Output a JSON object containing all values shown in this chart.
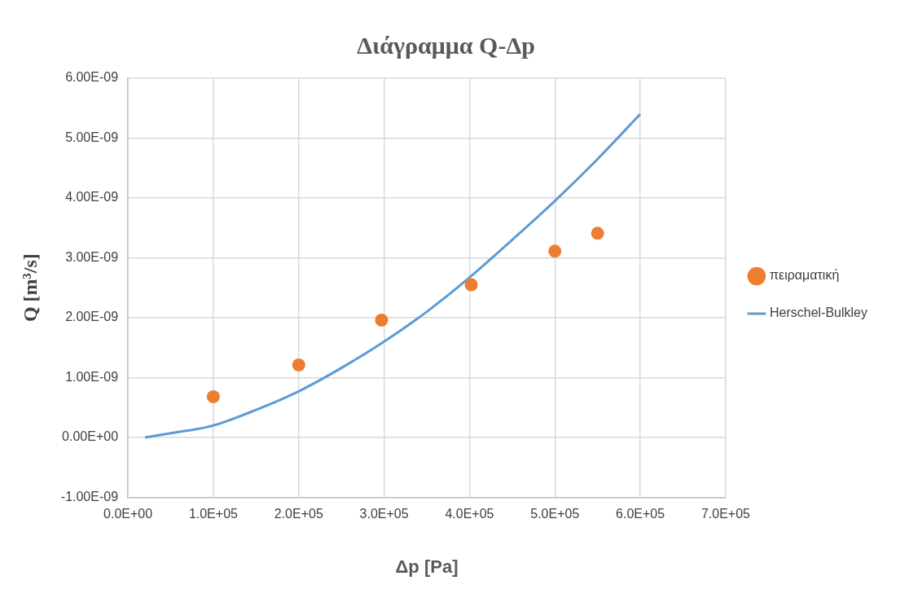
{
  "chart_data": {
    "type": "scatter",
    "title": "Διάγραμμα Q-Δp",
    "xlabel": "Δp [Pa]",
    "ylabel": "Q [m³/s]",
    "xlim": [
      0,
      700000
    ],
    "ylim": [
      -1e-09,
      6e-09
    ],
    "xticks": [
      {
        "value": 0,
        "label": "0.0E+00"
      },
      {
        "value": 100000,
        "label": "1.0E+05"
      },
      {
        "value": 200000,
        "label": "2.0E+05"
      },
      {
        "value": 300000,
        "label": "3.0E+05"
      },
      {
        "value": 400000,
        "label": "4.0E+05"
      },
      {
        "value": 500000,
        "label": "5.0E+05"
      },
      {
        "value": 600000,
        "label": "6.0E+05"
      },
      {
        "value": 700000,
        "label": "7.0E+05"
      }
    ],
    "yticks": [
      {
        "value": -1e-09,
        "label": "-1.00E-09"
      },
      {
        "value": 0,
        "label": "0.00E+00"
      },
      {
        "value": 1e-09,
        "label": "1.00E-09"
      },
      {
        "value": 2e-09,
        "label": "2.00E-09"
      },
      {
        "value": 3e-09,
        "label": "3.00E-09"
      },
      {
        "value": 4e-09,
        "label": "4.00E-09"
      },
      {
        "value": 5e-09,
        "label": "5.00E-09"
      },
      {
        "value": 6e-09,
        "label": "6.00E-09"
      }
    ],
    "grid": true,
    "legend": "right",
    "series": [
      {
        "name": "πειραματική",
        "marker": "circle",
        "color": "#ed7d31",
        "x": [
          100000,
          200000,
          297000,
          402000,
          500000,
          550000
        ],
        "values": [
          6.8e-10,
          1.21e-09,
          1.96e-09,
          2.55e-09,
          3.11e-09,
          3.41e-09
        ]
      },
      {
        "name": "Herschel-Bulkley",
        "type": "line",
        "marker": "none",
        "color": "#5b9bd5",
        "x": [
          20000,
          50000,
          100000,
          150000,
          200000,
          250000,
          300000,
          350000,
          400000,
          450000,
          500000,
          550000,
          600000
        ],
        "values": [
          0,
          7e-11,
          2e-10,
          4.6e-10,
          7.7e-10,
          1.16e-09,
          1.6e-09,
          2.1e-09,
          2.67e-09,
          3.3e-09,
          3.95e-09,
          4.65e-09,
          5.4e-09
        ]
      }
    ]
  }
}
